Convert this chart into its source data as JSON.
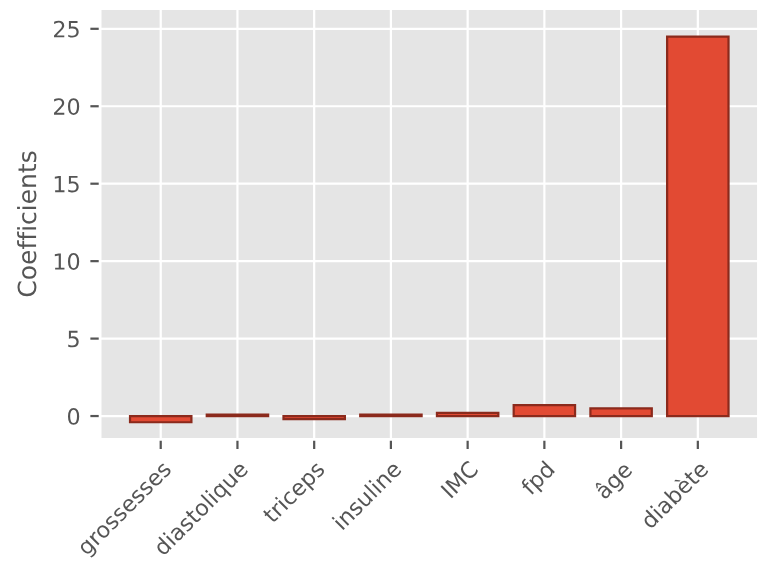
{
  "chart_data": {
    "type": "bar",
    "ylabel": "Coefficients",
    "categories": [
      "grossesses",
      "diastolique",
      "triceps",
      "insuline",
      "IMC",
      "fpd",
      "âge",
      "diabète"
    ],
    "values": [
      -0.4,
      0.1,
      -0.2,
      0.1,
      0.2,
      0.7,
      0.5,
      24.5
    ],
    "color": "#e24a33",
    "ylim": [
      -1.5,
      26.3
    ],
    "yticks": [
      0,
      5,
      10,
      15,
      20,
      25
    ],
    "grid": true
  }
}
